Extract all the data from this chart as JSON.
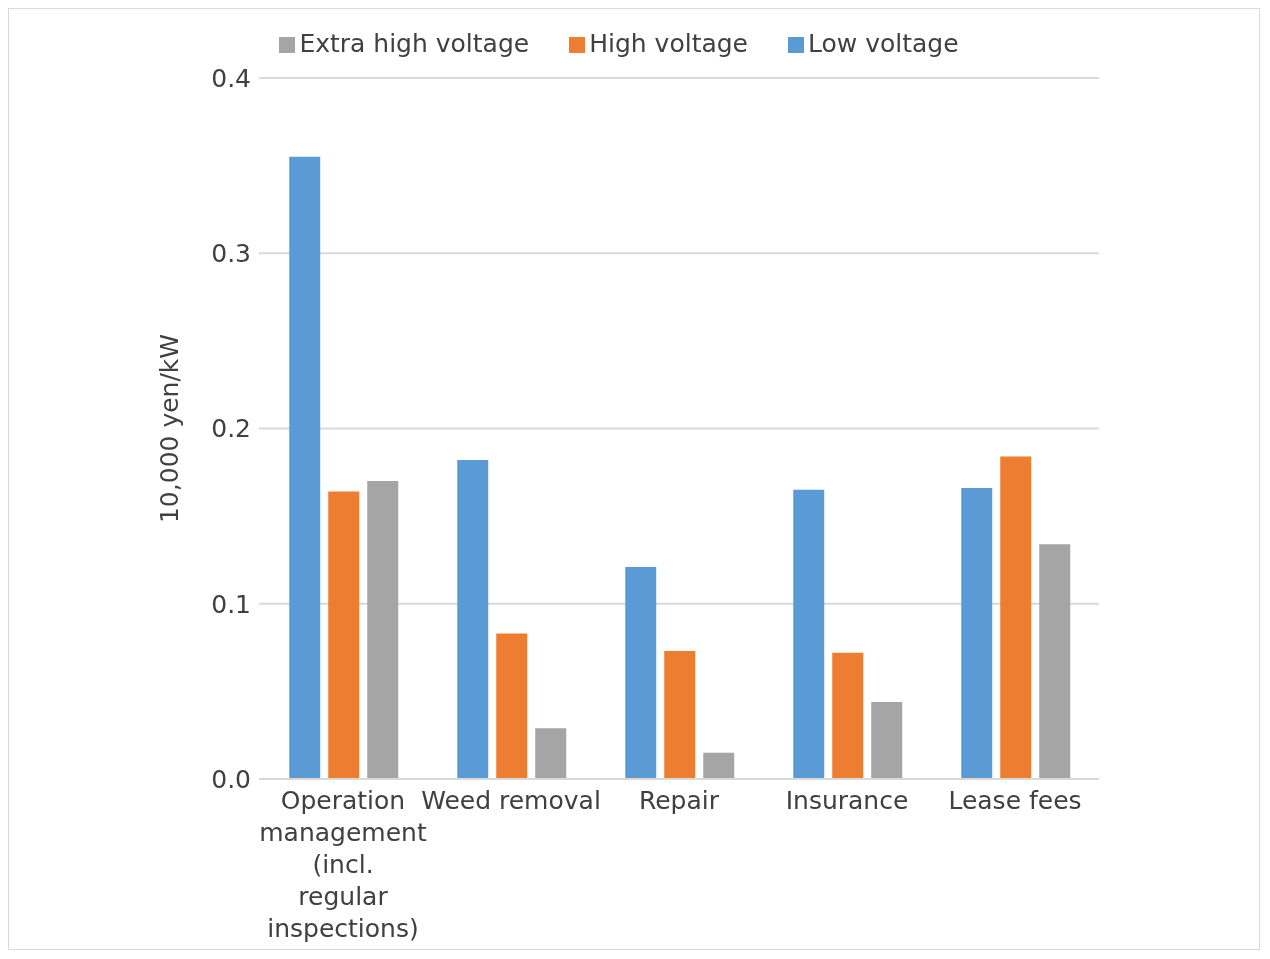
{
  "chart_data": {
    "type": "bar",
    "ylabel": "10,000 yen/kW",
    "categories": [
      "Operation management (incl. regular inspections)",
      "Weed removal",
      "Repair",
      "Insurance",
      "Lease fees"
    ],
    "series": [
      {
        "name": "Low voltage",
        "color": "#5b9bd5",
        "values": [
          0.355,
          0.182,
          0.121,
          0.165,
          0.166
        ]
      },
      {
        "name": "High voltage",
        "color": "#ed7d31",
        "values": [
          0.164,
          0.083,
          0.073,
          0.072,
          0.184
        ]
      },
      {
        "name": "Extra high voltage",
        "color": "#a5a5a5",
        "values": [
          0.17,
          0.029,
          0.015,
          0.044,
          0.134
        ]
      }
    ],
    "ylim": [
      0,
      0.4
    ],
    "yticks": [
      "0.0",
      0.1,
      0.2,
      0.3,
      0.4
    ],
    "grid": "y",
    "legend": "top"
  }
}
